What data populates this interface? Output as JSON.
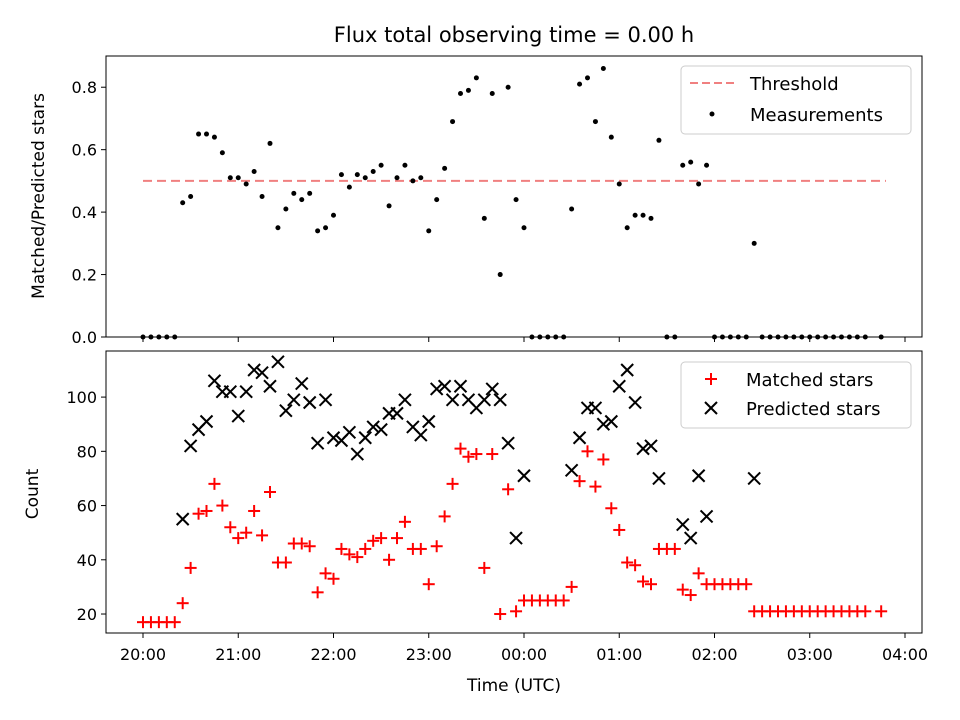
{
  "chart_data": [
    {
      "type": "scatter",
      "title": "Flux total observing time = 0.00 h",
      "xlabel": "",
      "ylabel": "Matched/Predicted stars",
      "ylim": [
        0,
        0.9
      ],
      "yticks": [
        "0.0",
        "0.2",
        "0.4",
        "0.6",
        "0.8"
      ],
      "legend_position": "upper right",
      "series": [
        {
          "name": "Threshold",
          "style": "dashed-line",
          "color": "#f08080",
          "x": [
            "20:00",
            "03:48"
          ],
          "y": [
            0.5,
            0.5
          ]
        },
        {
          "name": "Measurements",
          "style": "dot",
          "color": "#000000",
          "points": [
            [
              "20:00",
              0.0
            ],
            [
              "20:05",
              0.0
            ],
            [
              "20:10",
              0.0
            ],
            [
              "20:15",
              0.0
            ],
            [
              "20:20",
              0.0
            ],
            [
              "20:25",
              0.43
            ],
            [
              "20:30",
              0.45
            ],
            [
              "20:35",
              0.65
            ],
            [
              "20:40",
              0.65
            ],
            [
              "20:45",
              0.64
            ],
            [
              "20:50",
              0.59
            ],
            [
              "20:55",
              0.51
            ],
            [
              "21:00",
              0.51
            ],
            [
              "21:05",
              0.49
            ],
            [
              "21:10",
              0.53
            ],
            [
              "21:15",
              0.45
            ],
            [
              "21:20",
              0.62
            ],
            [
              "21:25",
              0.35
            ],
            [
              "21:30",
              0.41
            ],
            [
              "21:35",
              0.46
            ],
            [
              "21:40",
              0.44
            ],
            [
              "21:45",
              0.46
            ],
            [
              "21:50",
              0.34
            ],
            [
              "21:55",
              0.35
            ],
            [
              "22:00",
              0.39
            ],
            [
              "22:05",
              0.52
            ],
            [
              "22:10",
              0.48
            ],
            [
              "22:15",
              0.52
            ],
            [
              "22:20",
              0.51
            ],
            [
              "22:25",
              0.53
            ],
            [
              "22:30",
              0.55
            ],
            [
              "22:35",
              0.42
            ],
            [
              "22:40",
              0.51
            ],
            [
              "22:45",
              0.55
            ],
            [
              "22:50",
              0.5
            ],
            [
              "22:55",
              0.51
            ],
            [
              "23:00",
              0.34
            ],
            [
              "23:05",
              0.44
            ],
            [
              "23:10",
              0.54
            ],
            [
              "23:15",
              0.69
            ],
            [
              "23:20",
              0.78
            ],
            [
              "23:25",
              0.79
            ],
            [
              "23:30",
              0.83
            ],
            [
              "23:35",
              0.38
            ],
            [
              "23:40",
              0.78
            ],
            [
              "23:45",
              0.2
            ],
            [
              "23:50",
              0.8
            ],
            [
              "23:55",
              0.44
            ],
            [
              "00:00",
              0.35
            ],
            [
              "00:05",
              0.0
            ],
            [
              "00:10",
              0.0
            ],
            [
              "00:15",
              0.0
            ],
            [
              "00:20",
              0.0
            ],
            [
              "00:25",
              0.0
            ],
            [
              "00:30",
              0.41
            ],
            [
              "00:35",
              0.81
            ],
            [
              "00:40",
              0.83
            ],
            [
              "00:45",
              0.69
            ],
            [
              "00:50",
              0.86
            ],
            [
              "00:55",
              0.64
            ],
            [
              "01:00",
              0.49
            ],
            [
              "01:05",
              0.35
            ],
            [
              "01:10",
              0.39
            ],
            [
              "01:15",
              0.39
            ],
            [
              "01:20",
              0.38
            ],
            [
              "01:25",
              0.63
            ],
            [
              "01:30",
              0.0
            ],
            [
              "01:35",
              0.0
            ],
            [
              "01:40",
              0.55
            ],
            [
              "01:45",
              0.56
            ],
            [
              "01:50",
              0.49
            ],
            [
              "01:55",
              0.55
            ],
            [
              "02:00",
              0.0
            ],
            [
              "02:05",
              0.0
            ],
            [
              "02:10",
              0.0
            ],
            [
              "02:15",
              0.0
            ],
            [
              "02:20",
              0.0
            ],
            [
              "02:25",
              0.3
            ],
            [
              "02:30",
              0.0
            ],
            [
              "02:35",
              0.0
            ],
            [
              "02:40",
              0.0
            ],
            [
              "02:45",
              0.0
            ],
            [
              "02:50",
              0.0
            ],
            [
              "02:55",
              0.0
            ],
            [
              "03:00",
              0.0
            ],
            [
              "03:05",
              0.0
            ],
            [
              "03:10",
              0.0
            ],
            [
              "03:15",
              0.0
            ],
            [
              "03:20",
              0.0
            ],
            [
              "03:25",
              0.0
            ],
            [
              "03:30",
              0.0
            ],
            [
              "03:35",
              0.0
            ],
            [
              "03:45",
              0.0
            ]
          ]
        }
      ]
    },
    {
      "type": "scatter",
      "title": "",
      "xlabel": "Time (UTC)",
      "ylabel": "Count",
      "ylim": [
        13,
        117
      ],
      "yticks": [
        "20",
        "40",
        "60",
        "80",
        "100"
      ],
      "xticks": [
        "20:00",
        "21:00",
        "22:00",
        "23:00",
        "00:00",
        "01:00",
        "02:00",
        "03:00",
        "04:00"
      ],
      "legend_position": "upper right",
      "series": [
        {
          "name": "Matched stars",
          "marker": "+",
          "color": "#ff0000",
          "points": [
            [
              "20:00",
              17
            ],
            [
              "20:05",
              17
            ],
            [
              "20:10",
              17
            ],
            [
              "20:15",
              17
            ],
            [
              "20:20",
              17
            ],
            [
              "20:25",
              24
            ],
            [
              "20:30",
              37
            ],
            [
              "20:35",
              57
            ],
            [
              "20:40",
              58
            ],
            [
              "20:45",
              68
            ],
            [
              "20:50",
              60
            ],
            [
              "20:55",
              52
            ],
            [
              "21:00",
              48
            ],
            [
              "21:05",
              50
            ],
            [
              "21:10",
              58
            ],
            [
              "21:15",
              49
            ],
            [
              "21:20",
              65
            ],
            [
              "21:25",
              39
            ],
            [
              "21:30",
              39
            ],
            [
              "21:35",
              46
            ],
            [
              "21:40",
              46
            ],
            [
              "21:45",
              45
            ],
            [
              "21:50",
              28
            ],
            [
              "21:55",
              35
            ],
            [
              "22:00",
              33
            ],
            [
              "22:05",
              44
            ],
            [
              "22:10",
              42
            ],
            [
              "22:15",
              41
            ],
            [
              "22:20",
              44
            ],
            [
              "22:25",
              47
            ],
            [
              "22:30",
              48
            ],
            [
              "22:35",
              40
            ],
            [
              "22:40",
              48
            ],
            [
              "22:45",
              54
            ],
            [
              "22:50",
              44
            ],
            [
              "22:55",
              44
            ],
            [
              "23:00",
              31
            ],
            [
              "23:05",
              45
            ],
            [
              "23:10",
              56
            ],
            [
              "23:15",
              68
            ],
            [
              "23:20",
              81
            ],
            [
              "23:25",
              78
            ],
            [
              "23:30",
              79
            ],
            [
              "23:35",
              37
            ],
            [
              "23:40",
              79
            ],
            [
              "23:45",
              20
            ],
            [
              "23:50",
              66
            ],
            [
              "23:55",
              21
            ],
            [
              "00:00",
              25
            ],
            [
              "00:05",
              25
            ],
            [
              "00:10",
              25
            ],
            [
              "00:15",
              25
            ],
            [
              "00:20",
              25
            ],
            [
              "00:25",
              25
            ],
            [
              "00:30",
              30
            ],
            [
              "00:35",
              69
            ],
            [
              "00:40",
              80
            ],
            [
              "00:45",
              67
            ],
            [
              "00:50",
              77
            ],
            [
              "00:55",
              59
            ],
            [
              "01:00",
              51
            ],
            [
              "01:05",
              39
            ],
            [
              "01:10",
              38
            ],
            [
              "01:15",
              32
            ],
            [
              "01:20",
              31
            ],
            [
              "01:25",
              44
            ],
            [
              "01:30",
              44
            ],
            [
              "01:35",
              44
            ],
            [
              "01:40",
              29
            ],
            [
              "01:45",
              27
            ],
            [
              "01:50",
              35
            ],
            [
              "01:55",
              31
            ],
            [
              "02:00",
              31
            ],
            [
              "02:05",
              31
            ],
            [
              "02:10",
              31
            ],
            [
              "02:15",
              31
            ],
            [
              "02:20",
              31
            ],
            [
              "02:25",
              21
            ],
            [
              "02:30",
              21
            ],
            [
              "02:35",
              21
            ],
            [
              "02:40",
              21
            ],
            [
              "02:45",
              21
            ],
            [
              "02:50",
              21
            ],
            [
              "02:55",
              21
            ],
            [
              "03:00",
              21
            ],
            [
              "03:05",
              21
            ],
            [
              "03:10",
              21
            ],
            [
              "03:15",
              21
            ],
            [
              "03:20",
              21
            ],
            [
              "03:25",
              21
            ],
            [
              "03:30",
              21
            ],
            [
              "03:35",
              21
            ],
            [
              "03:45",
              21
            ]
          ]
        },
        {
          "name": "Predicted stars",
          "marker": "x",
          "color": "#000000",
          "points": [
            [
              "20:25",
              55
            ],
            [
              "20:30",
              82
            ],
            [
              "20:35",
              88
            ],
            [
              "20:40",
              91
            ],
            [
              "20:45",
              106
            ],
            [
              "20:50",
              102
            ],
            [
              "20:55",
              102
            ],
            [
              "21:00",
              93
            ],
            [
              "21:05",
              102
            ],
            [
              "21:10",
              110
            ],
            [
              "21:15",
              109
            ],
            [
              "21:20",
              104
            ],
            [
              "21:25",
              113
            ],
            [
              "21:30",
              95
            ],
            [
              "21:35",
              99
            ],
            [
              "21:40",
              105
            ],
            [
              "21:45",
              98
            ],
            [
              "21:50",
              83
            ],
            [
              "21:55",
              99
            ],
            [
              "22:00",
              85
            ],
            [
              "22:05",
              84
            ],
            [
              "22:10",
              87
            ],
            [
              "22:15",
              79
            ],
            [
              "22:20",
              85
            ],
            [
              "22:25",
              89
            ],
            [
              "22:30",
              88
            ],
            [
              "22:35",
              94
            ],
            [
              "22:40",
              94
            ],
            [
              "22:45",
              99
            ],
            [
              "22:50",
              89
            ],
            [
              "22:55",
              86
            ],
            [
              "23:00",
              91
            ],
            [
              "23:05",
              103
            ],
            [
              "23:10",
              104
            ],
            [
              "23:15",
              99
            ],
            [
              "23:20",
              104
            ],
            [
              "23:25",
              99
            ],
            [
              "23:30",
              96
            ],
            [
              "23:35",
              99
            ],
            [
              "23:40",
              103
            ],
            [
              "23:45",
              99
            ],
            [
              "23:50",
              83
            ],
            [
              "23:55",
              48
            ],
            [
              "00:00",
              71
            ],
            [
              "00:30",
              73
            ],
            [
              "00:35",
              85
            ],
            [
              "00:40",
              96
            ],
            [
              "00:45",
              96
            ],
            [
              "00:50",
              90
            ],
            [
              "00:55",
              91
            ],
            [
              "01:00",
              104
            ],
            [
              "01:05",
              110
            ],
            [
              "01:10",
              98
            ],
            [
              "01:15",
              81
            ],
            [
              "01:20",
              82
            ],
            [
              "01:25",
              70
            ],
            [
              "01:40",
              53
            ],
            [
              "01:45",
              48
            ],
            [
              "01:50",
              71
            ],
            [
              "01:55",
              56
            ],
            [
              "02:25",
              70
            ]
          ]
        }
      ]
    }
  ]
}
